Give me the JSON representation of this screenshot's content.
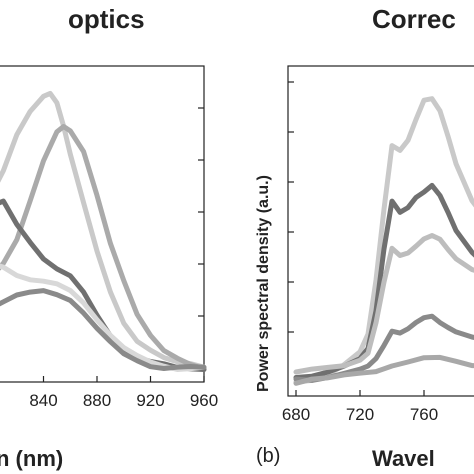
{
  "chart_data": [
    {
      "type": "line",
      "title": "optics",
      "xlabel": "n (nm)",
      "ylabel": "",
      "xlim": [
        800,
        960
      ],
      "ylim": [
        0,
        1
      ],
      "x_ticks": [
        840,
        880,
        920,
        960
      ],
      "grid": false,
      "series": [
        {
          "color": "#c9c9c9",
          "x": [
            800,
            810,
            820,
            830,
            840,
            845,
            850,
            855,
            860,
            870,
            880,
            890,
            900,
            910,
            920,
            930,
            940,
            950,
            960
          ],
          "values": [
            0.62,
            0.72,
            0.85,
            0.93,
            0.98,
            0.99,
            0.96,
            0.88,
            0.78,
            0.6,
            0.42,
            0.27,
            0.16,
            0.1,
            0.07,
            0.04,
            0.02,
            0.01,
            0.0
          ]
        },
        {
          "color": "#aaaaaa",
          "x": [
            800,
            810,
            820,
            830,
            840,
            850,
            855,
            860,
            870,
            880,
            890,
            900,
            910,
            920,
            930,
            940,
            950,
            960
          ],
          "values": [
            0.33,
            0.38,
            0.46,
            0.6,
            0.75,
            0.86,
            0.88,
            0.86,
            0.78,
            0.62,
            0.45,
            0.32,
            0.2,
            0.12,
            0.06,
            0.03,
            0.01,
            0.0
          ]
        },
        {
          "color": "#707070",
          "x": [
            800,
            810,
            820,
            830,
            840,
            850,
            860,
            870,
            880,
            890,
            900,
            910,
            920,
            930,
            940,
            950,
            960
          ],
          "values": [
            0.58,
            0.6,
            0.52,
            0.46,
            0.4,
            0.36,
            0.33,
            0.27,
            0.19,
            0.12,
            0.07,
            0.04,
            0.02,
            0.01,
            0.0,
            0.0,
            0.0
          ]
        },
        {
          "color": "#d8d8d8",
          "x": [
            800,
            810,
            820,
            830,
            840,
            850,
            860,
            870,
            880,
            890,
            900,
            910,
            920,
            930,
            940,
            950,
            960
          ],
          "values": [
            0.38,
            0.37,
            0.34,
            0.32,
            0.31,
            0.3,
            0.28,
            0.24,
            0.18,
            0.12,
            0.07,
            0.04,
            0.02,
            0.01,
            0.0,
            0.0,
            0.0
          ]
        },
        {
          "color": "#8a8a8a",
          "x": [
            800,
            810,
            820,
            830,
            840,
            850,
            860,
            870,
            880,
            890,
            900,
            910,
            920,
            930,
            940,
            950,
            960
          ],
          "values": [
            0.22,
            0.24,
            0.26,
            0.27,
            0.28,
            0.27,
            0.25,
            0.2,
            0.14,
            0.09,
            0.05,
            0.03,
            0.01,
            0.0,
            0.0,
            0.0,
            0.0
          ]
        }
      ]
    },
    {
      "type": "line",
      "title": "Correc",
      "xlabel": "Wavel",
      "ylabel": "Power spectral density (a.u.)",
      "xlim": [
        675,
        800
      ],
      "ylim": [
        0,
        1
      ],
      "x_ticks": [
        680,
        720,
        760
      ],
      "panel_label": "(b)",
      "grid": false,
      "series": [
        {
          "color": "#c9c9c9",
          "x": [
            680,
            690,
            700,
            710,
            720,
            725,
            730,
            735,
            740,
            745,
            750,
            755,
            760,
            765,
            770,
            775,
            780,
            790,
            800
          ],
          "values": [
            0.0,
            0.01,
            0.03,
            0.06,
            0.1,
            0.16,
            0.35,
            0.6,
            0.82,
            0.8,
            0.83,
            0.9,
            0.97,
            0.98,
            0.94,
            0.85,
            0.75,
            0.62,
            0.55
          ]
        },
        {
          "color": "#707070",
          "x": [
            680,
            690,
            700,
            710,
            720,
            725,
            730,
            735,
            740,
            745,
            750,
            755,
            760,
            765,
            770,
            775,
            780,
            790,
            800
          ],
          "values": [
            0.02,
            0.02,
            0.03,
            0.05,
            0.08,
            0.12,
            0.25,
            0.46,
            0.62,
            0.58,
            0.6,
            0.64,
            0.66,
            0.68,
            0.64,
            0.58,
            0.52,
            0.45,
            0.4
          ]
        },
        {
          "color": "#bdbdbd",
          "x": [
            680,
            690,
            700,
            710,
            720,
            725,
            730,
            735,
            740,
            745,
            750,
            755,
            760,
            765,
            770,
            775,
            780,
            790,
            800
          ],
          "values": [
            0.03,
            0.04,
            0.05,
            0.06,
            0.08,
            0.1,
            0.2,
            0.34,
            0.46,
            0.44,
            0.45,
            0.47,
            0.49,
            0.5,
            0.49,
            0.46,
            0.43,
            0.39,
            0.37
          ]
        },
        {
          "color": "#8a8a8a",
          "x": [
            680,
            690,
            700,
            710,
            720,
            725,
            730,
            735,
            740,
            745,
            750,
            755,
            760,
            765,
            770,
            775,
            780,
            790,
            800
          ],
          "values": [
            0.01,
            0.01,
            0.02,
            0.03,
            0.04,
            0.05,
            0.08,
            0.13,
            0.18,
            0.17,
            0.18,
            0.2,
            0.22,
            0.23,
            0.21,
            0.19,
            0.17,
            0.15,
            0.14
          ]
        },
        {
          "color": "#a8a8a8",
          "x": [
            680,
            690,
            700,
            710,
            720,
            730,
            740,
            750,
            760,
            770,
            780,
            790,
            800
          ],
          "values": [
            0.0,
            0.01,
            0.01,
            0.02,
            0.03,
            0.04,
            0.06,
            0.07,
            0.08,
            0.08,
            0.07,
            0.06,
            0.06
          ]
        }
      ]
    }
  ]
}
